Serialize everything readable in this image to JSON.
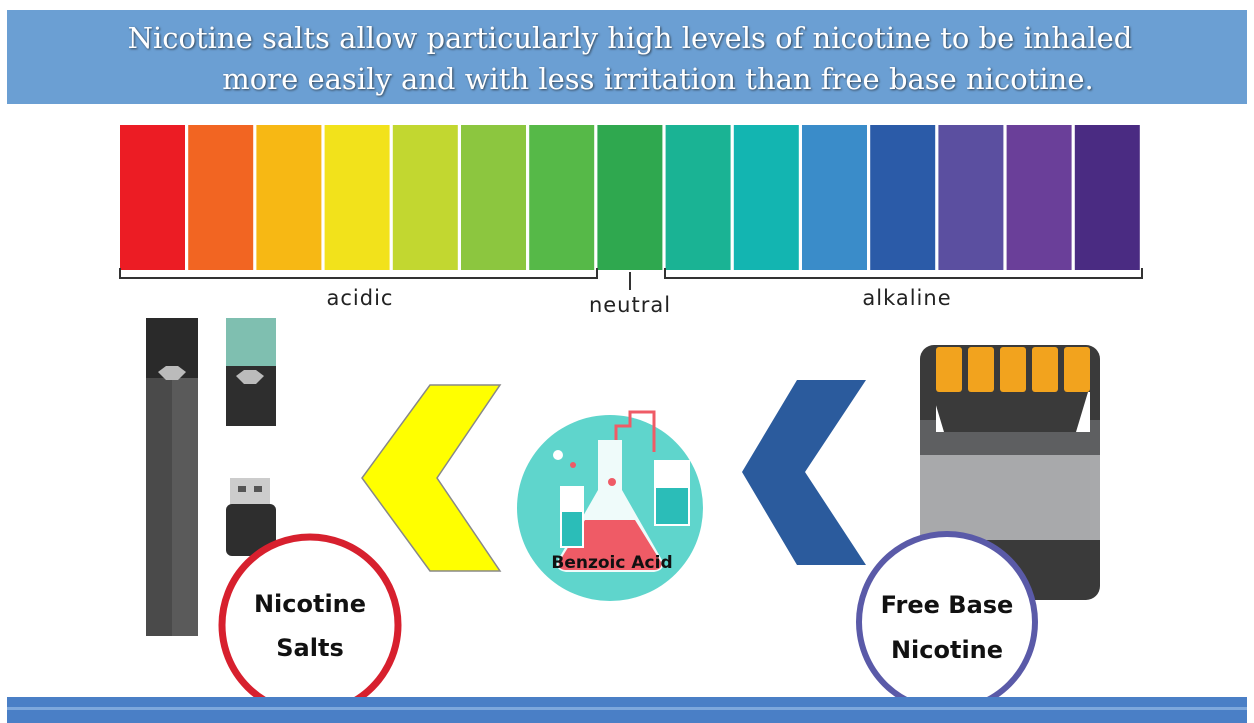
{
  "header": {
    "title_lines": [
      "Nicotine salts allow particularly high levels of nicotine to be inhaled",
      "more easily and with less irritation than free base nicotine."
    ]
  },
  "scale": {
    "acidic": "acidic",
    "neutral": "neutral",
    "alkaline": "alkaline"
  },
  "nodes": [
    {
      "label_lines": [
        "Nicotine",
        "Salts"
      ]
    },
    {
      "label": "Benzoic Acid"
    },
    {
      "label_lines": [
        "Free Base",
        "Nicotine"
      ]
    }
  ]
}
